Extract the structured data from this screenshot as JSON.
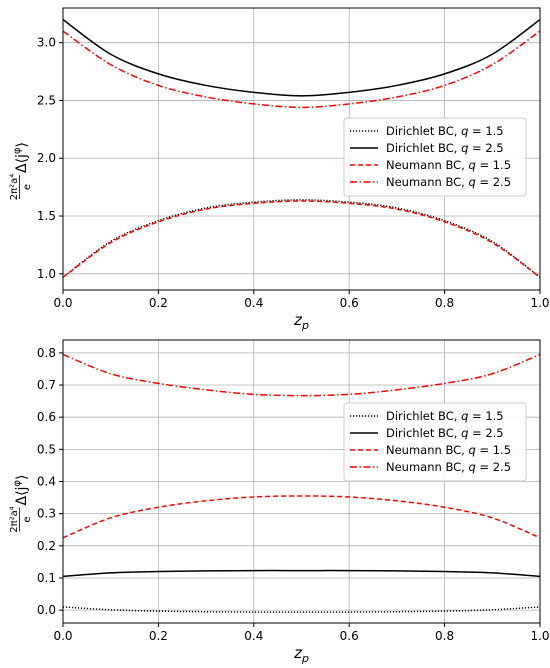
{
  "chart_data": [
    {
      "type": "line",
      "xlabel": "z_p",
      "ylabel": "(2π²a⁴/e) Δ⟨j^φ⟩",
      "xlim": [
        0.0,
        1.0
      ],
      "ylim": [
        0.86,
        3.3
      ],
      "xticks": [
        "0.0",
        "0.2",
        "0.4",
        "0.6",
        "0.8",
        "1.0"
      ],
      "yticks": [
        "1.0",
        "1.5",
        "2.0",
        "2.5",
        "3.0"
      ],
      "grid": true,
      "legend_position": "center-right",
      "x": [
        0.0,
        0.1,
        0.2,
        0.3,
        0.4,
        0.5,
        0.6,
        0.7,
        0.8,
        0.9,
        1.0
      ],
      "series": [
        {
          "name": "Dirichlet BC, q = 1.5",
          "color": "#000000",
          "style": "dotted",
          "values": [
            0.97,
            1.28,
            1.46,
            1.57,
            1.62,
            1.64,
            1.62,
            1.57,
            1.46,
            1.28,
            0.97
          ]
        },
        {
          "name": "Dirichlet BC, q = 2.5",
          "color": "#000000",
          "style": "solid",
          "values": [
            3.2,
            2.9,
            2.73,
            2.63,
            2.57,
            2.54,
            2.57,
            2.63,
            2.73,
            2.9,
            3.2
          ]
        },
        {
          "name": "Neumann BC, q = 1.5",
          "color": "#ff0000",
          "style": "dashed",
          "values": [
            0.97,
            1.27,
            1.45,
            1.56,
            1.61,
            1.63,
            1.61,
            1.56,
            1.45,
            1.27,
            0.97
          ]
        },
        {
          "name": "Neumann BC, q = 2.5",
          "color": "#ff0000",
          "style": "dashdot",
          "values": [
            3.1,
            2.81,
            2.63,
            2.53,
            2.47,
            2.44,
            2.47,
            2.53,
            2.63,
            2.81,
            3.1
          ]
        }
      ]
    },
    {
      "type": "line",
      "xlabel": "z_p",
      "ylabel": "(2π²a⁴/e) Δ⟨j^φ⟩",
      "xlim": [
        0.0,
        1.0
      ],
      "ylim": [
        -0.04,
        0.84
      ],
      "xticks": [
        "0.0",
        "0.2",
        "0.4",
        "0.6",
        "0.8",
        "1.0"
      ],
      "yticks": [
        "0.0",
        "0.1",
        "0.2",
        "0.3",
        "0.4",
        "0.5",
        "0.6",
        "0.7",
        "0.8"
      ],
      "grid": true,
      "legend_position": "center-right",
      "x": [
        0.0,
        0.1,
        0.2,
        0.3,
        0.4,
        0.5,
        0.6,
        0.7,
        0.8,
        0.9,
        1.0
      ],
      "series": [
        {
          "name": "Dirichlet BC, q = 1.5",
          "color": "#000000",
          "style": "dotted",
          "values": [
            0.01,
            0.001,
            -0.003,
            -0.005,
            -0.006,
            -0.006,
            -0.006,
            -0.005,
            -0.003,
            0.001,
            0.01
          ]
        },
        {
          "name": "Dirichlet BC, q = 2.5",
          "color": "#000000",
          "style": "solid",
          "values": [
            0.105,
            0.116,
            0.12,
            0.122,
            0.123,
            0.123,
            0.123,
            0.122,
            0.12,
            0.116,
            0.105
          ]
        },
        {
          "name": "Neumann BC, q = 1.5",
          "color": "#ff0000",
          "style": "dashed",
          "values": [
            0.225,
            0.287,
            0.32,
            0.34,
            0.352,
            0.355,
            0.352,
            0.34,
            0.32,
            0.287,
            0.225
          ]
        },
        {
          "name": "Neumann BC, q = 2.5",
          "color": "#ff0000",
          "style": "dashdot",
          "values": [
            0.795,
            0.735,
            0.705,
            0.685,
            0.671,
            0.667,
            0.671,
            0.685,
            0.705,
            0.735,
            0.795
          ]
        }
      ]
    }
  ]
}
